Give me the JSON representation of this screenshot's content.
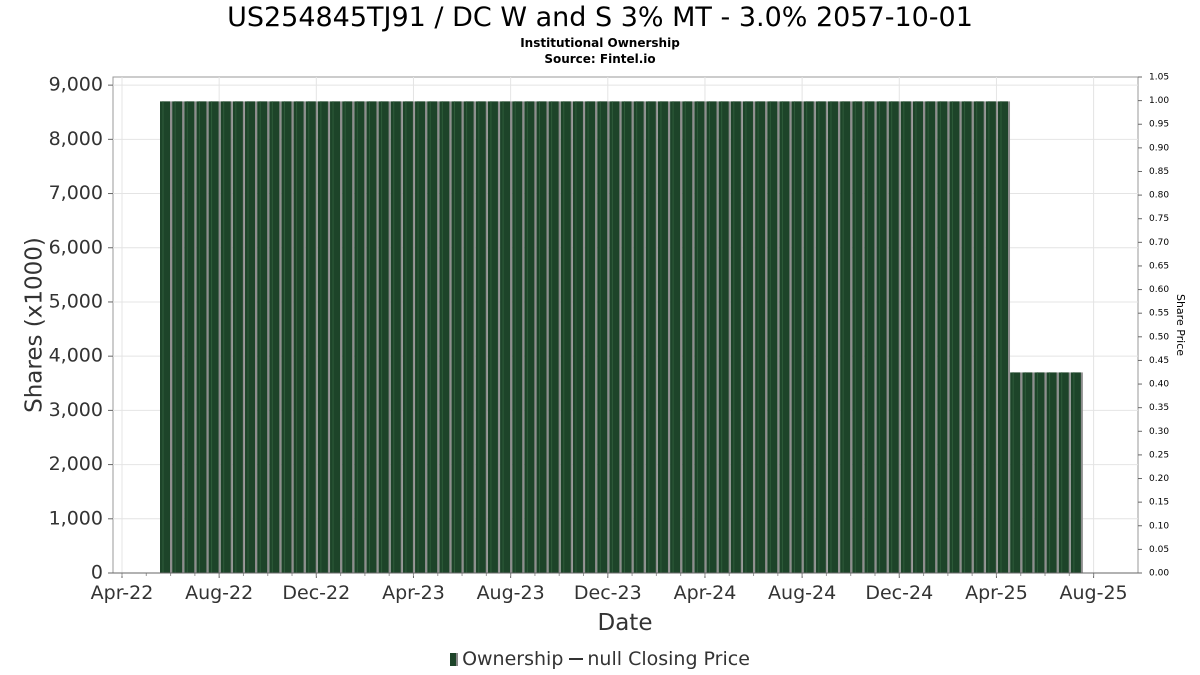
{
  "chart_data": {
    "type": "bar",
    "title": "US254845TJ91 / DC W and S 3% MT - 3.0% 2057-10-01",
    "subtitle": "Institutional Ownership",
    "source": "Source: Fintel.io",
    "xlabel": "Date",
    "ylabel": "Shares (x1000)",
    "y2label": "Share Price",
    "x_ticks": [
      "Apr-22",
      "Aug-22",
      "Dec-22",
      "Apr-23",
      "Aug-23",
      "Dec-23",
      "Apr-24",
      "Aug-24",
      "Dec-24",
      "Apr-25",
      "Aug-25"
    ],
    "y_ticks": [
      "0",
      "1,000",
      "2,000",
      "3,000",
      "4,000",
      "5,000",
      "6,000",
      "7,000",
      "8,000",
      "9,000"
    ],
    "y2_ticks": [
      "0.00",
      "0.05",
      "0.10",
      "0.15",
      "0.20",
      "0.25",
      "0.30",
      "0.35",
      "0.40",
      "0.45",
      "0.50",
      "0.55",
      "0.60",
      "0.65",
      "0.70",
      "0.75",
      "0.80",
      "0.85",
      "0.90",
      "0.95",
      "1.00",
      "1.05"
    ],
    "ylim": [
      0,
      9150
    ],
    "y2lim": [
      0,
      1.05
    ],
    "grid": true,
    "legend_position": "bottom",
    "series": [
      {
        "name": "Ownership",
        "color": "#1d4429",
        "values": [
          8700,
          8700,
          8700,
          8700,
          8700,
          8700,
          8700,
          8700,
          8700,
          8700,
          8700,
          8700,
          8700,
          8700,
          8700,
          8700,
          8700,
          8700,
          8700,
          8700,
          8700,
          8700,
          8700,
          8700,
          8700,
          8700,
          8700,
          8700,
          8700,
          8700,
          8700,
          8700,
          8700,
          8700,
          8700,
          8700,
          8700,
          8700,
          8700,
          8700,
          8700,
          8700,
          8700,
          8700,
          8700,
          8700,
          8700,
          8700,
          8700,
          8700,
          8700,
          8700,
          8700,
          8700,
          8700,
          8700,
          8700,
          8700,
          8700,
          8700,
          8700,
          8700,
          8700,
          8700,
          8700,
          8700,
          8700,
          8700,
          8700,
          8700,
          3700,
          3700,
          3700,
          3700,
          3700,
          3700
        ]
      },
      {
        "name": "null Closing Price",
        "color": "#333333",
        "values": []
      }
    ],
    "legend": [
      "Ownership",
      "null Closing Price"
    ]
  }
}
